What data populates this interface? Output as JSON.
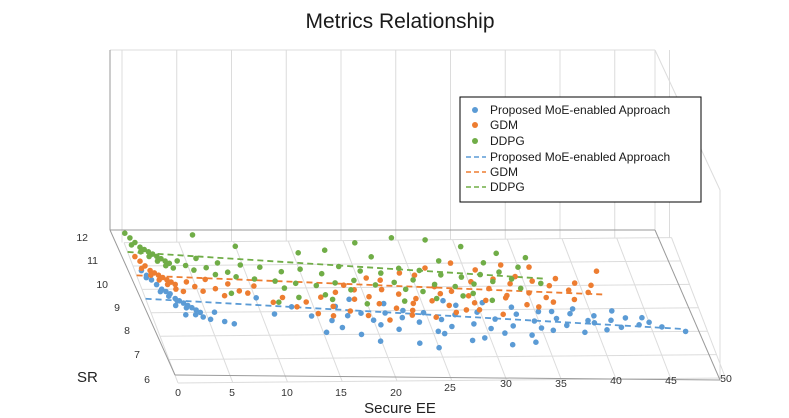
{
  "chart_data": {
    "type": "scatter",
    "title": "Metrics Relationship",
    "xlabel": "Secure EE",
    "ylabel": "SR",
    "xlim": [
      0,
      50
    ],
    "ylim": [
      6,
      12
    ],
    "x_ticks": [
      "0",
      "5",
      "10",
      "15",
      "20",
      "25",
      "30",
      "35",
      "40",
      "45",
      "50"
    ],
    "y_ticks": [
      "6",
      "7",
      "8",
      "9",
      "10",
      "11",
      "12"
    ],
    "grid": true,
    "legend_position": "upper-right",
    "series": [
      {
        "name": "Proposed MoE-enabled Approach",
        "color": "#5b9bd5",
        "points": [
          [
            0.6,
            10.8
          ],
          [
            0.9,
            10.6
          ],
          [
            1.2,
            10.4
          ],
          [
            1.5,
            10.2
          ],
          [
            1.8,
            10.0
          ],
          [
            2.1,
            9.9
          ],
          [
            2.4,
            9.8
          ],
          [
            2.7,
            9.6
          ],
          [
            3.0,
            9.5
          ],
          [
            3.3,
            9.4
          ],
          [
            3.6,
            9.3
          ],
          [
            3.9,
            9.2
          ],
          [
            4.2,
            9.1
          ],
          [
            4.5,
            9.0
          ],
          [
            0.8,
            10.5
          ],
          [
            1.6,
            9.9
          ],
          [
            2.2,
            9.7
          ],
          [
            2.8,
            9.5
          ],
          [
            3.4,
            9.2
          ],
          [
            4.0,
            8.9
          ],
          [
            4.6,
            8.8
          ],
          [
            5.2,
            8.7
          ],
          [
            5.8,
            9.0
          ],
          [
            6.4,
            8.6
          ],
          [
            7.2,
            8.5
          ],
          [
            3.1,
            8.9
          ],
          [
            2.5,
            9.3
          ],
          [
            10.1,
            9.6
          ],
          [
            11.2,
            8.9
          ],
          [
            13.0,
            9.2
          ],
          [
            14.5,
            8.8
          ],
          [
            15.3,
            8.1
          ],
          [
            16.2,
            8.6
          ],
          [
            16.9,
            8.3
          ],
          [
            17.8,
            8.8
          ],
          [
            18.4,
            8.0
          ],
          [
            19.1,
            8.9
          ],
          [
            19.9,
            7.7
          ],
          [
            20.5,
            8.4
          ],
          [
            21.3,
            8.9
          ],
          [
            22.0,
            8.2
          ],
          [
            22.7,
            8.7
          ],
          [
            23.4,
            7.6
          ],
          [
            24.1,
            8.5
          ],
          [
            24.8,
            8.9
          ],
          [
            25.5,
            8.1
          ],
          [
            26.2,
            8.6
          ],
          [
            26.9,
            8.3
          ],
          [
            27.6,
            8.8
          ],
          [
            28.3,
            7.7
          ],
          [
            29.0,
            8.4
          ],
          [
            29.7,
            8.9
          ],
          [
            30.4,
            8.2
          ],
          [
            31.1,
            8.6
          ],
          [
            31.8,
            7.5
          ],
          [
            32.5,
            8.3
          ],
          [
            33.2,
            8.8
          ],
          [
            33.9,
            7.9
          ],
          [
            34.6,
            8.5
          ],
          [
            35.3,
            8.9
          ],
          [
            36.0,
            8.1
          ],
          [
            36.7,
            8.6
          ],
          [
            37.4,
            8.3
          ],
          [
            38.1,
            8.8
          ],
          [
            38.8,
            8.0
          ],
          [
            39.5,
            8.5
          ],
          [
            40.2,
            8.7
          ],
          [
            40.9,
            8.1
          ],
          [
            41.6,
            8.5
          ],
          [
            42.3,
            8.2
          ],
          [
            43.0,
            8.6
          ],
          [
            44.0,
            8.3
          ],
          [
            45.0,
            8.4
          ],
          [
            46.0,
            8.2
          ],
          [
            48.0,
            8.0
          ],
          [
            27.0,
            9.4
          ],
          [
            33.0,
            9.1
          ],
          [
            38.5,
            9.0
          ],
          [
            21.5,
            9.3
          ],
          [
            18.5,
            9.5
          ],
          [
            30.5,
            9.3
          ],
          [
            36.5,
            8.9
          ],
          [
            25.0,
            7.4
          ],
          [
            29.5,
            7.8
          ],
          [
            34.0,
            7.6
          ],
          [
            17.0,
            9.2
          ],
          [
            23.0,
            9.0
          ],
          [
            31.5,
            8.0
          ],
          [
            28.0,
            9.2
          ],
          [
            40.0,
            8.4
          ],
          [
            20.0,
            8.6
          ],
          [
            26.0,
            8.0
          ],
          [
            35.0,
            8.2
          ],
          [
            42.0,
            8.9
          ],
          [
            44.5,
            8.6
          ]
        ]
      },
      {
        "name": "GDM",
        "color": "#ed7d31",
        "points": [
          [
            0.5,
            11.4
          ],
          [
            0.8,
            11.2
          ],
          [
            1.1,
            11.0
          ],
          [
            1.4,
            10.8
          ],
          [
            1.7,
            10.7
          ],
          [
            2.0,
            10.6
          ],
          [
            2.3,
            10.5
          ],
          [
            2.6,
            10.4
          ],
          [
            2.9,
            10.3
          ],
          [
            3.2,
            10.2
          ],
          [
            0.7,
            10.9
          ],
          [
            1.3,
            10.6
          ],
          [
            1.9,
            10.4
          ],
          [
            2.5,
            10.2
          ],
          [
            3.1,
            10.0
          ],
          [
            3.7,
            9.9
          ],
          [
            4.3,
            10.3
          ],
          [
            4.9,
            10.1
          ],
          [
            5.5,
            9.9
          ],
          [
            6.1,
            10.4
          ],
          [
            6.7,
            10.0
          ],
          [
            7.3,
            9.7
          ],
          [
            8.0,
            10.2
          ],
          [
            8.8,
            9.9
          ],
          [
            9.5,
            9.8
          ],
          [
            10.3,
            10.1
          ],
          [
            11.5,
            9.4
          ],
          [
            12.5,
            9.6
          ],
          [
            13.5,
            9.2
          ],
          [
            14.5,
            9.4
          ],
          [
            15.2,
            8.9
          ],
          [
            16.0,
            9.6
          ],
          [
            16.8,
            9.2
          ],
          [
            17.5,
            9.8
          ],
          [
            18.2,
            9.0
          ],
          [
            19.0,
            9.5
          ],
          [
            19.7,
            8.8
          ],
          [
            20.4,
            9.6
          ],
          [
            21.1,
            9.3
          ],
          [
            21.8,
            9.9
          ],
          [
            22.5,
            9.1
          ],
          [
            23.2,
            9.7
          ],
          [
            23.9,
            9.0
          ],
          [
            24.6,
            9.5
          ],
          [
            25.3,
            10.5
          ],
          [
            26.0,
            9.4
          ],
          [
            26.7,
            10.0
          ],
          [
            27.4,
            9.2
          ],
          [
            28.1,
            9.8
          ],
          [
            28.8,
            9.0
          ],
          [
            29.5,
            9.6
          ],
          [
            30.2,
            10.2
          ],
          [
            30.9,
            9.4
          ],
          [
            31.6,
            9.9
          ],
          [
            32.3,
            10.3
          ],
          [
            33.0,
            9.6
          ],
          [
            33.7,
            10.1
          ],
          [
            34.4,
            10.4
          ],
          [
            35.1,
            9.7
          ],
          [
            35.8,
            10.2
          ],
          [
            36.5,
            9.5
          ],
          [
            37.2,
            10.0
          ],
          [
            38.0,
            10.3
          ],
          [
            38.8,
            9.8
          ],
          [
            39.6,
            10.1
          ],
          [
            40.5,
            9.7
          ],
          [
            22.0,
            10.3
          ],
          [
            24.0,
            10.6
          ],
          [
            26.5,
            10.8
          ],
          [
            29.0,
            11.0
          ],
          [
            31.0,
            10.7
          ],
          [
            33.5,
            10.9
          ],
          [
            36.0,
            10.8
          ],
          [
            18.5,
            10.1
          ],
          [
            20.8,
            10.4
          ],
          [
            21.5,
            8.6
          ],
          [
            23.7,
            8.8
          ],
          [
            25.8,
            8.7
          ],
          [
            27.8,
            8.9
          ],
          [
            30.0,
            9.0
          ],
          [
            32.0,
            8.8
          ],
          [
            34.5,
            9.2
          ],
          [
            37.0,
            9.3
          ],
          [
            16.5,
            8.8
          ],
          [
            19.3,
            9.9
          ],
          [
            24.2,
            9.3
          ],
          [
            27.0,
            9.7
          ],
          [
            29.8,
            9.3
          ],
          [
            32.8,
            9.5
          ],
          [
            35.5,
            9.1
          ],
          [
            39.0,
            9.4
          ],
          [
            41.0,
            10.0
          ],
          [
            42.0,
            10.6
          ]
        ]
      },
      {
        "name": "DDPG",
        "color": "#70ad47",
        "points": [
          [
            0.4,
            12.4
          ],
          [
            0.7,
            12.2
          ],
          [
            1.0,
            12.0
          ],
          [
            1.3,
            11.8
          ],
          [
            1.6,
            11.7
          ],
          [
            1.9,
            11.6
          ],
          [
            2.2,
            11.5
          ],
          [
            2.5,
            11.4
          ],
          [
            2.8,
            11.3
          ],
          [
            3.1,
            11.2
          ],
          [
            3.4,
            11.1
          ],
          [
            0.6,
            11.9
          ],
          [
            1.2,
            11.6
          ],
          [
            1.8,
            11.4
          ],
          [
            2.4,
            11.2
          ],
          [
            3.0,
            11.0
          ],
          [
            3.6,
            10.9
          ],
          [
            4.2,
            11.2
          ],
          [
            4.8,
            11.0
          ],
          [
            5.4,
            10.8
          ],
          [
            6.0,
            11.3
          ],
          [
            6.6,
            10.9
          ],
          [
            7.2,
            10.6
          ],
          [
            7.8,
            11.1
          ],
          [
            8.4,
            10.7
          ],
          [
            9.0,
            10.5
          ],
          [
            9.8,
            11.0
          ],
          [
            10.6,
            10.4
          ],
          [
            11.5,
            10.9
          ],
          [
            12.4,
            10.3
          ],
          [
            13.3,
            10.7
          ],
          [
            14.2,
            10.2
          ],
          [
            15.1,
            10.8
          ],
          [
            16.0,
            10.1
          ],
          [
            16.9,
            10.6
          ],
          [
            17.8,
            10.2
          ],
          [
            18.7,
            10.9
          ],
          [
            19.6,
            10.3
          ],
          [
            20.5,
            10.7
          ],
          [
            21.4,
            10.1
          ],
          [
            22.3,
            10.6
          ],
          [
            23.2,
            10.2
          ],
          [
            24.1,
            10.8
          ],
          [
            25.0,
            10.3
          ],
          [
            25.9,
            10.7
          ],
          [
            26.8,
            10.1
          ],
          [
            27.7,
            10.5
          ],
          [
            28.6,
            10.0
          ],
          [
            29.5,
            10.4
          ],
          [
            30.4,
            10.1
          ],
          [
            31.3,
            10.5
          ],
          [
            32.2,
            10.2
          ],
          [
            33.1,
            10.6
          ],
          [
            34.0,
            10.3
          ],
          [
            35.0,
            10.8
          ],
          [
            36.0,
            11.2
          ],
          [
            12.0,
            9.4
          ],
          [
            14.0,
            9.6
          ],
          [
            17.0,
            9.5
          ],
          [
            20.0,
            9.3
          ],
          [
            23.5,
            9.4
          ],
          [
            26.5,
            9.5
          ],
          [
            29.0,
            9.6
          ],
          [
            31.5,
            9.4
          ],
          [
            15.5,
            11.5
          ],
          [
            18.0,
            11.6
          ],
          [
            21.0,
            11.9
          ],
          [
            24.5,
            12.1
          ],
          [
            27.5,
            12.0
          ],
          [
            30.5,
            11.7
          ],
          [
            33.5,
            11.4
          ],
          [
            6.5,
            12.3
          ],
          [
            10.0,
            11.8
          ],
          [
            22.0,
            11.3
          ],
          [
            28.0,
            11.1
          ],
          [
            32.0,
            11.0
          ],
          [
            19.0,
            9.9
          ],
          [
            25.5,
            9.8
          ],
          [
            8.0,
            9.8
          ],
          [
            13.0,
            10.0
          ],
          [
            16.5,
            9.7
          ],
          [
            24.0,
            9.9
          ],
          [
            30.0,
            9.7
          ],
          [
            34.5,
            9.9
          ],
          [
            36.5,
            10.1
          ]
        ]
      }
    ],
    "fit_lines": [
      {
        "name": "Proposed MoE-enabled Approach",
        "color": "#5b9bd5",
        "x": [
          0,
          48
        ],
        "y": [
          9.6,
          8.1
        ]
      },
      {
        "name": "GDM",
        "color": "#ed7d31",
        "x": [
          0,
          42
        ],
        "y": [
          10.6,
          9.6
        ]
      },
      {
        "name": "DDPG",
        "color": "#70ad47",
        "x": [
          0,
          37
        ],
        "y": [
          11.6,
          10.3
        ]
      }
    ],
    "legend": [
      {
        "label": "Proposed MoE-enabled Approach",
        "kind": "marker",
        "color": "#5b9bd5"
      },
      {
        "label": "GDM",
        "kind": "marker",
        "color": "#ed7d31"
      },
      {
        "label": "DDPG",
        "kind": "marker",
        "color": "#70ad47"
      },
      {
        "label": "Proposed MoE-enabled Approach",
        "kind": "line",
        "color": "#5b9bd5"
      },
      {
        "label": "GDM",
        "kind": "line",
        "color": "#ed7d31"
      },
      {
        "label": "DDPG",
        "kind": "line",
        "color": "#70ad47"
      }
    ]
  }
}
